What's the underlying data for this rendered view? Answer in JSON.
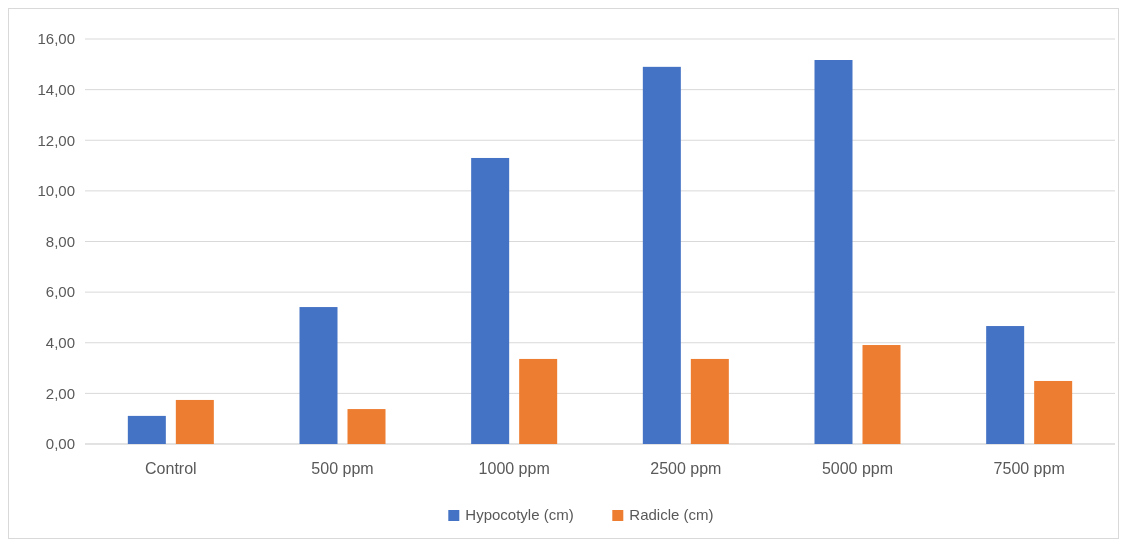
{
  "chart_data": {
    "type": "bar",
    "categories": [
      "Control",
      "500 ppm",
      "1000 ppm",
      "2500 ppm",
      "5000 ppm",
      "7500 ppm"
    ],
    "series": [
      {
        "name": "Hypocotyle (cm)",
        "color": "#4472c4",
        "values": [
          1.11,
          5.41,
          11.3,
          14.9,
          15.17,
          4.66
        ]
      },
      {
        "name": "Radicle (cm)",
        "color": "#ed7d31",
        "values": [
          1.74,
          1.38,
          3.36,
          3.36,
          3.91,
          2.49
        ]
      }
    ],
    "ylim": [
      0,
      16
    ],
    "yticks": [
      {
        "value": 0,
        "label": "0,00"
      },
      {
        "value": 2,
        "label": "2,00"
      },
      {
        "value": 4,
        "label": "4,00"
      },
      {
        "value": 6,
        "label": "6,00"
      },
      {
        "value": 8,
        "label": "8,00"
      },
      {
        "value": 10,
        "label": "10,00"
      },
      {
        "value": 12,
        "label": "12,00"
      },
      {
        "value": 14,
        "label": "14,00"
      },
      {
        "value": 16,
        "label": "16,00"
      }
    ],
    "grid": "y",
    "legend": "bottom"
  }
}
